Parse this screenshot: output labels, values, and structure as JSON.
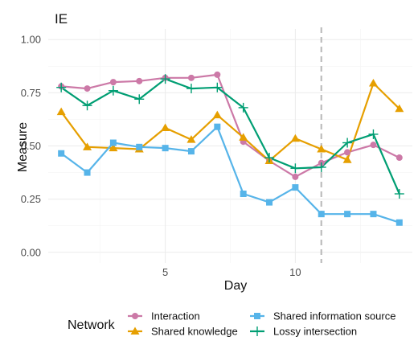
{
  "chart_data": {
    "type": "line",
    "title": "IE",
    "xlabel": "Day",
    "ylabel": "Measure",
    "xlim": [
      0.5,
      14.5
    ],
    "ylim": [
      -0.05,
      1.05
    ],
    "xticks": [
      5,
      10
    ],
    "yticks": [
      0.0,
      0.25,
      0.5,
      0.75,
      1.0
    ],
    "ytick_labels": [
      "0.00",
      "0.25",
      "0.50",
      "0.75",
      "1.00"
    ],
    "vline_x": 11,
    "x": [
      1,
      2,
      3,
      4,
      5,
      6,
      7,
      8,
      9,
      10,
      11,
      12,
      13,
      14
    ],
    "legend": {
      "title": "Network",
      "position": "bottom"
    },
    "series": [
      {
        "name": "Interaction",
        "color": "#CC79A7",
        "marker": "circle",
        "values": [
          0.78,
          0.77,
          0.8,
          0.805,
          0.82,
          0.82,
          0.835,
          0.52,
          0.43,
          0.355,
          0.42,
          0.47,
          0.505,
          0.445
        ]
      },
      {
        "name": "Shared knowledge",
        "color": "#E69F00",
        "marker": "triangle",
        "values": [
          0.66,
          0.495,
          0.49,
          0.485,
          0.585,
          0.53,
          0.645,
          0.54,
          0.43,
          0.535,
          0.485,
          0.435,
          0.795,
          0.675
        ]
      },
      {
        "name": "Shared information source",
        "color": "#56B4E9",
        "marker": "square",
        "values": [
          0.465,
          0.375,
          0.515,
          0.495,
          0.49,
          0.475,
          0.59,
          0.275,
          0.235,
          0.305,
          0.18,
          0.18,
          0.18,
          0.14
        ]
      },
      {
        "name": "Lossy intersection",
        "color": "#009E73",
        "marker": "plus",
        "values": [
          0.775,
          0.69,
          0.76,
          0.72,
          0.815,
          0.77,
          0.775,
          0.68,
          0.445,
          0.395,
          0.4,
          0.515,
          0.555,
          0.275
        ]
      }
    ]
  }
}
